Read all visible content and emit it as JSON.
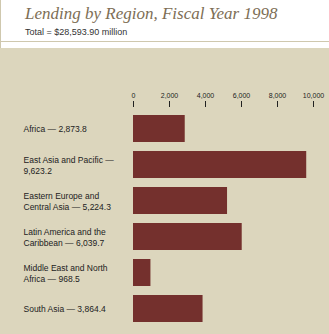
{
  "chart_data": {
    "type": "bar",
    "orientation": "horizontal",
    "title": "Lending by Region, Fiscal Year 1998",
    "subtitle": "Total = $28,593.90 million",
    "categories": [
      "Africa — 2,873.8",
      "East Asia and Pacific — 9,623.2",
      "Eastern Europe and Central Asia — 5,224.3",
      "Latin America and the Caribbean — 6,039.7",
      "Middle East and North Africa — 968.5",
      "South Asia — 3,864.4"
    ],
    "values": [
      2873.8,
      9623.2,
      5224.3,
      6039.7,
      968.5,
      3864.4
    ],
    "color": "#74302d",
    "xlim": [
      0,
      10000
    ],
    "xticks": [
      0,
      {
        "value": 2000,
        "label": "2,000"
      },
      {
        "value": 4000,
        "label": "4,000"
      },
      {
        "value": 6000,
        "label": "6,000"
      },
      {
        "value": 8000,
        "label": "8,000"
      },
      {
        "value": 10000,
        "label": "10,000"
      }
    ],
    "grid": false
  }
}
